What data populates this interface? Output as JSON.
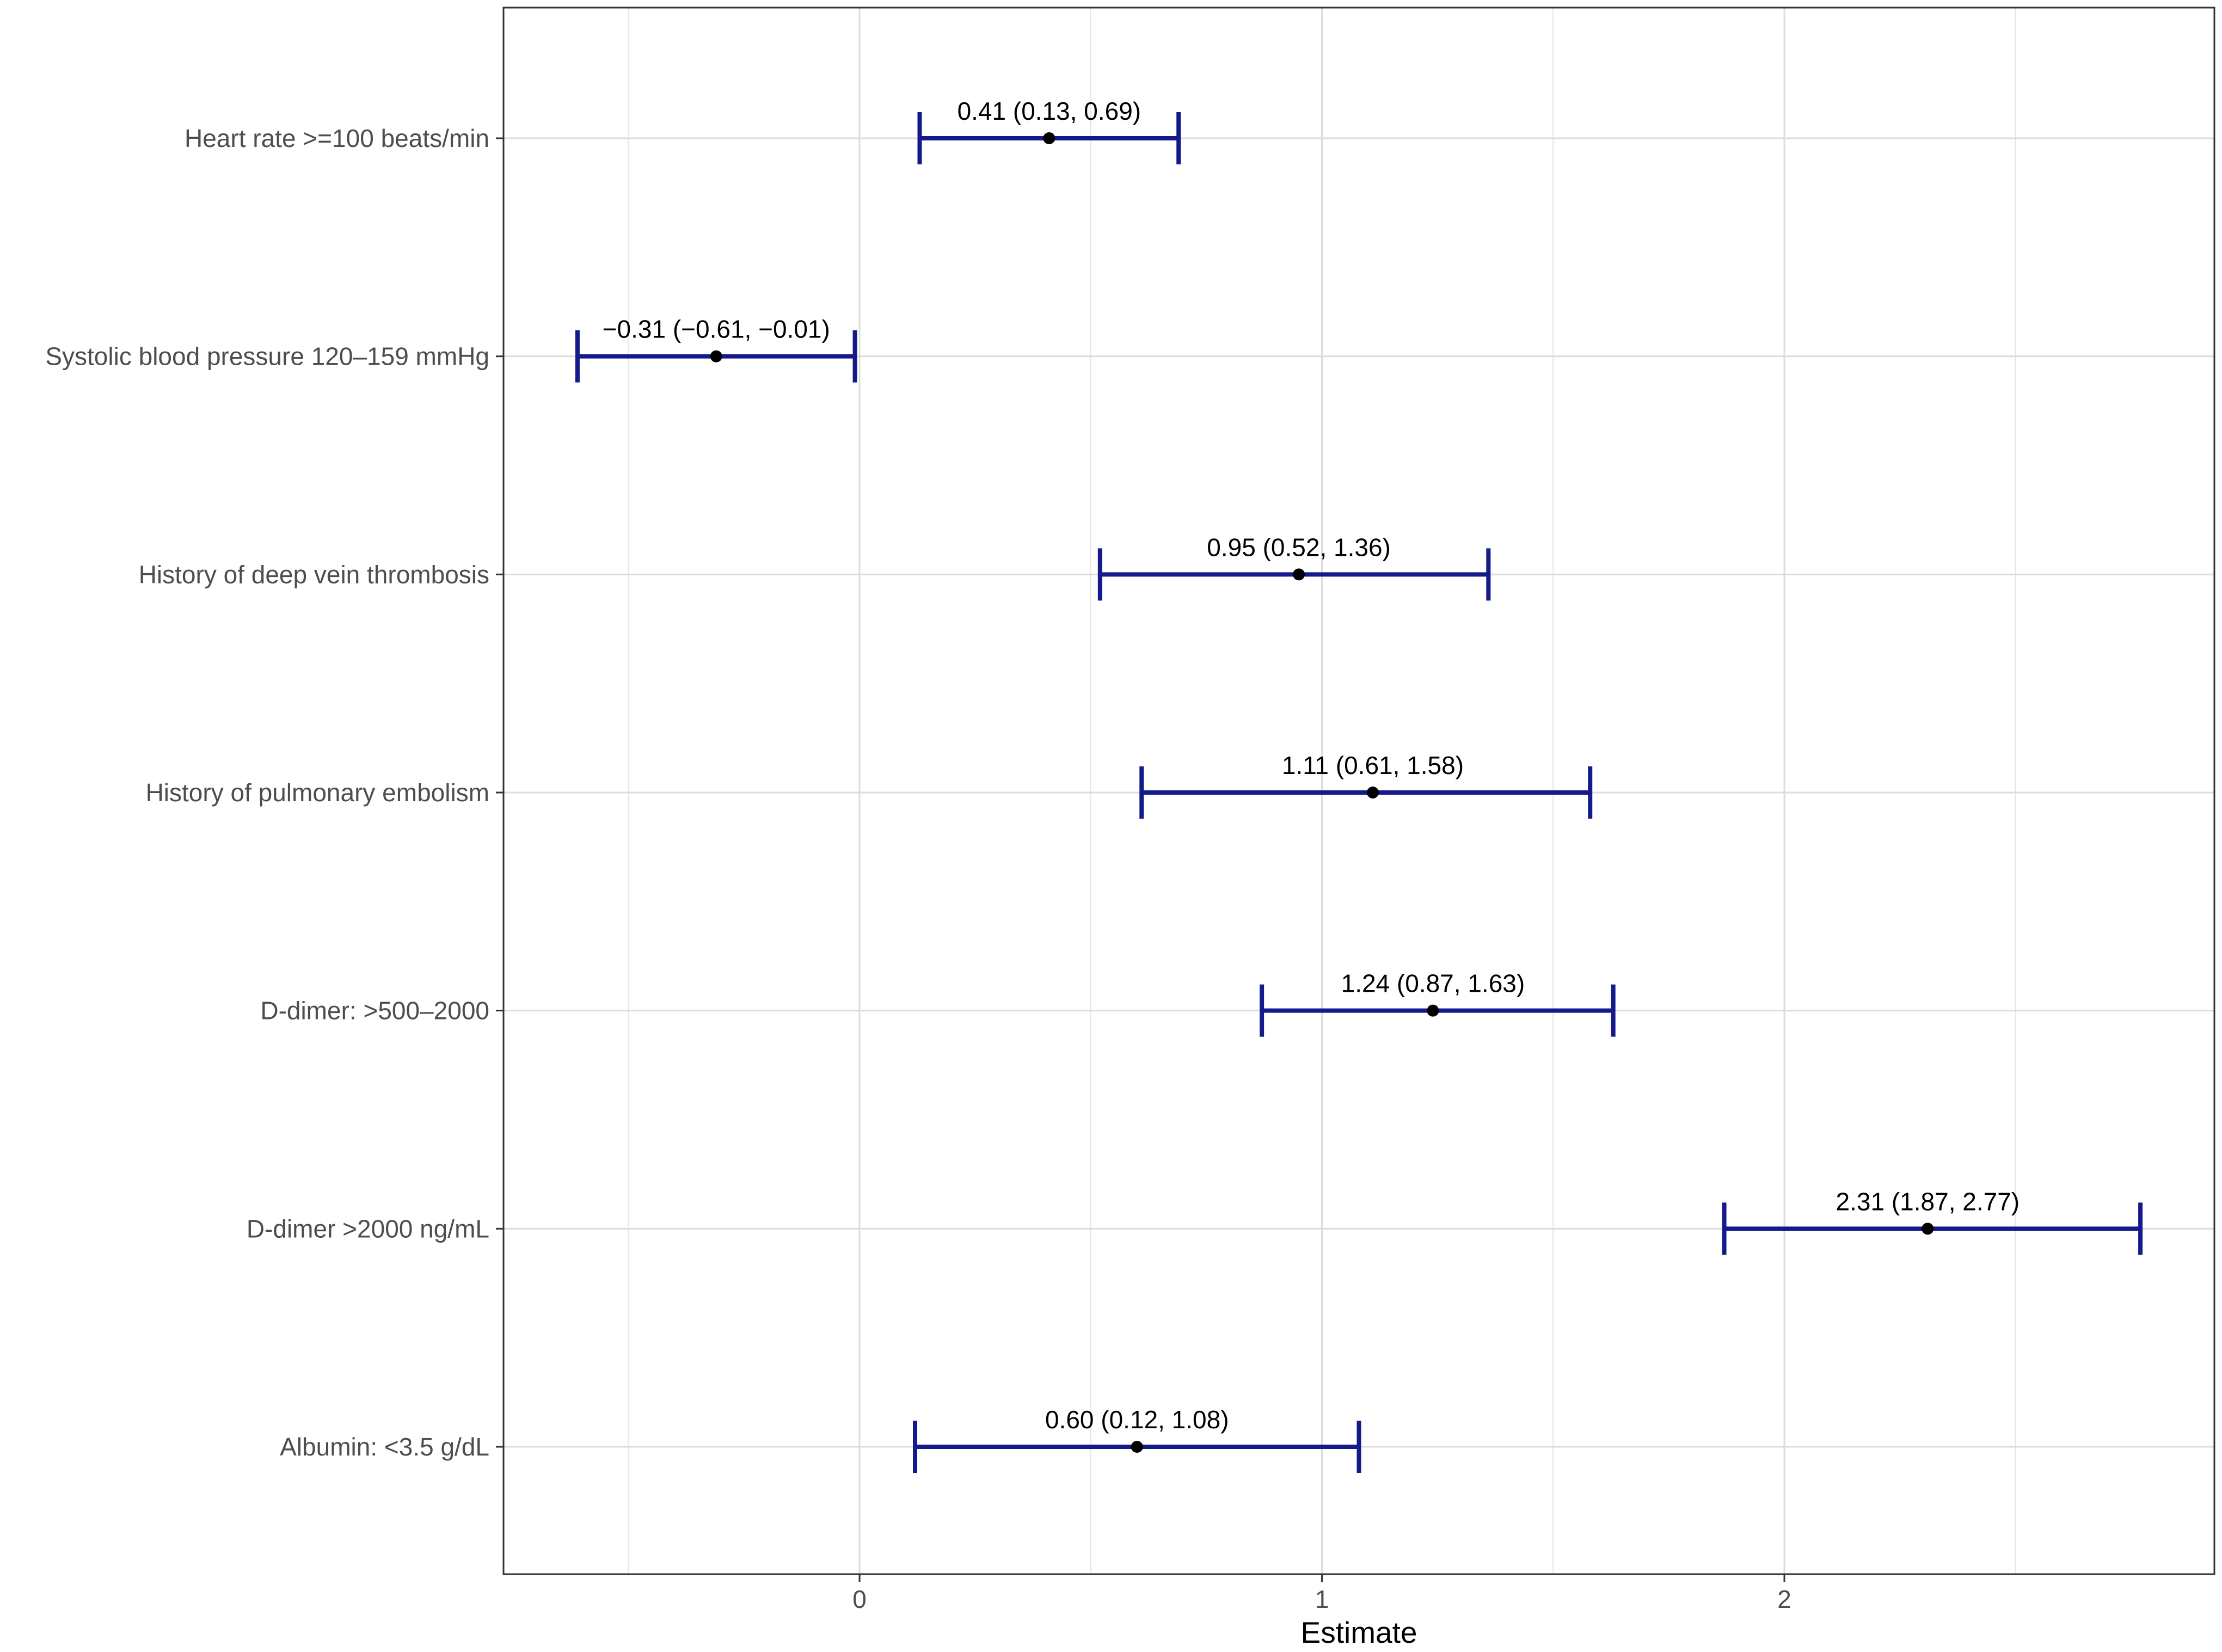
{
  "chart_data": {
    "type": "forest",
    "title": "",
    "xlabel": "Estimate",
    "ylabel": "",
    "xlim": [
      -0.77,
      2.93
    ],
    "x_ticks": [
      0,
      1,
      2
    ],
    "x_tick_labels": [
      "0",
      "1",
      "2"
    ],
    "x_minor_grid": [
      -0.5,
      0.5,
      1.5,
      2.5
    ],
    "grid": true,
    "colors": {
      "interval": "#141a8c",
      "point": "#000000",
      "grid": "#e5e5e5",
      "panel_border": "#333333"
    },
    "rows": [
      {
        "label": "Heart rate >=100 beats/min",
        "estimate": 0.41,
        "lower": 0.13,
        "upper": 0.69,
        "text": "0.41 (0.13, 0.69)"
      },
      {
        "label": "Systolic blood pressure 120–159 mmHg",
        "estimate": -0.31,
        "lower": -0.61,
        "upper": -0.01,
        "text": "−0.31 (−0.61, −0.01)"
      },
      {
        "label": "History of deep vein thrombosis",
        "estimate": 0.95,
        "lower": 0.52,
        "upper": 1.36,
        "text": "0.95 (0.52, 1.36)"
      },
      {
        "label": "History of pulmonary embolism",
        "estimate": 1.11,
        "lower": 0.61,
        "upper": 1.58,
        "text": "1.11 (0.61, 1.58)"
      },
      {
        "label": "D-dimer: >500–2000",
        "estimate": 1.24,
        "lower": 0.87,
        "upper": 1.63,
        "text": "1.24 (0.87, 1.63)"
      },
      {
        "label": "D-dimer >2000 ng/mL",
        "estimate": 2.31,
        "lower": 1.87,
        "upper": 2.77,
        "text": "2.31 (1.87, 2.77)"
      },
      {
        "label": "Albumin: <3.5 g/dL",
        "estimate": 0.6,
        "lower": 0.12,
        "upper": 1.08,
        "text": "0.60 (0.12, 1.08)"
      }
    ]
  }
}
